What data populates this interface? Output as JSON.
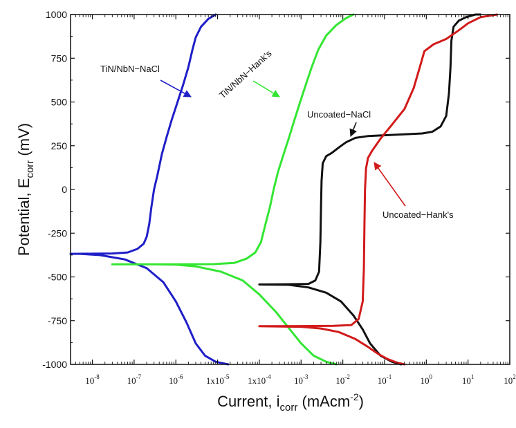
{
  "chart_data": {
    "type": "line",
    "xscale": "log",
    "xlim": [
      3e-09,
      100
    ],
    "ylim": [
      -1000,
      1000
    ],
    "grid": false,
    "legend": "none (labels on chart with arrows)",
    "xlabel": {
      "main": "Current, i",
      "sub": "corr",
      "mid": " (mAcm",
      "sup": "-2",
      "end": ")"
    },
    "ylabel": {
      "main": "Potential, E",
      "sub": "corr",
      "end": " (mV)"
    },
    "y_ticks": [
      {
        "value": 1000,
        "label": "1000"
      },
      {
        "value": 750,
        "label": "750"
      },
      {
        "value": 500,
        "label": "500"
      },
      {
        "value": 250,
        "label": "250"
      },
      {
        "value": 0,
        "label": "0"
      },
      {
        "value": -250,
        "label": "-250"
      },
      {
        "value": -500,
        "label": "-500"
      },
      {
        "value": -750,
        "label": "-750"
      },
      {
        "value": -1000,
        "label": "-1000"
      }
    ],
    "x_ticks": [
      {
        "value": 1e-08,
        "base": "10",
        "exp": "-8"
      },
      {
        "value": 1e-07,
        "base": "10",
        "exp": "-7"
      },
      {
        "value": 1e-06,
        "base": "10",
        "exp": "-6"
      },
      {
        "value": 1e-05,
        "base": "1x10",
        "exp": "-5"
      },
      {
        "value": 0.0001,
        "base": "1x10",
        "exp": "-4"
      },
      {
        "value": 0.001,
        "base": "10",
        "exp": "-3"
      },
      {
        "value": 0.01,
        "base": "10",
        "exp": "-2"
      },
      {
        "value": 0.1,
        "base": "10",
        "exp": "-1"
      },
      {
        "value": 1,
        "base": "10",
        "exp": "0"
      },
      {
        "value": 10,
        "base": "10",
        "exp": "1"
      },
      {
        "value": 100,
        "base": "10",
        "exp": "2"
      }
    ],
    "series": [
      {
        "name": "TiN/NbN−NaCl",
        "color": "#1f1fc8",
        "points": [
          [
            1.8e-05,
            -1000
          ],
          [
            9e-06,
            -985
          ],
          [
            5e-06,
            -950
          ],
          [
            3e-06,
            -880
          ],
          [
            1.8e-06,
            -760
          ],
          [
            1e-06,
            -640
          ],
          [
            5e-07,
            -530
          ],
          [
            2e-07,
            -450
          ],
          [
            6e-08,
            -400
          ],
          [
            1.5e-08,
            -375
          ],
          [
            5e-09,
            -368
          ],
          [
            3e-09,
            -368
          ],
          [
            1e-08,
            -367
          ],
          [
            3e-08,
            -366
          ],
          [
            7e-08,
            -360
          ],
          [
            1.2e-07,
            -340
          ],
          [
            1.7e-07,
            -310
          ],
          [
            2e-07,
            -270
          ],
          [
            2.3e-07,
            -200
          ],
          [
            2.6e-07,
            -100
          ],
          [
            3e-07,
            0
          ],
          [
            3.6e-07,
            80
          ],
          [
            4.6e-07,
            200
          ],
          [
            6e-07,
            300
          ],
          [
            8e-07,
            400
          ],
          [
            1.1e-06,
            500
          ],
          [
            1.5e-06,
            600
          ],
          [
            2e-06,
            700
          ],
          [
            2.5e-06,
            800
          ],
          [
            3e-06,
            870
          ],
          [
            4e-06,
            930
          ],
          [
            6e-06,
            975
          ],
          [
            9e-06,
            1000
          ]
        ]
      },
      {
        "name": "TiN/NbN−Hank's",
        "color": "#33e633",
        "points": [
          [
            0.007,
            -1000
          ],
          [
            0.004,
            -985
          ],
          [
            0.002,
            -950
          ],
          [
            0.001,
            -880
          ],
          [
            0.0005,
            -790
          ],
          [
            0.00025,
            -700
          ],
          [
            0.0001,
            -600
          ],
          [
            4e-05,
            -520
          ],
          [
            1.2e-05,
            -470
          ],
          [
            3e-06,
            -440
          ],
          [
            1e-06,
            -430
          ],
          [
            3e-07,
            -428
          ],
          [
            3e-08,
            -428
          ],
          [
            1e-07,
            -428
          ],
          [
            1e-06,
            -428
          ],
          [
            8e-06,
            -427
          ],
          [
            2.5e-05,
            -420
          ],
          [
            5e-05,
            -395
          ],
          [
            8e-05,
            -360
          ],
          [
            0.00011,
            -300
          ],
          [
            0.00014,
            -200
          ],
          [
            0.00018,
            -100
          ],
          [
            0.00022,
            0
          ],
          [
            0.00028,
            100
          ],
          [
            0.00038,
            200
          ],
          [
            0.00052,
            300
          ],
          [
            0.0007,
            400
          ],
          [
            0.00095,
            500
          ],
          [
            0.0013,
            600
          ],
          [
            0.0018,
            700
          ],
          [
            0.0026,
            800
          ],
          [
            0.004,
            880
          ],
          [
            0.007,
            940
          ],
          [
            0.012,
            980
          ],
          [
            0.018,
            1000
          ]
        ]
      },
      {
        "name": "Uncoated−NaCl",
        "color": "#111111",
        "points": [
          [
            0.25,
            -1000
          ],
          [
            0.15,
            -985
          ],
          [
            0.08,
            -950
          ],
          [
            0.045,
            -880
          ],
          [
            0.03,
            -800
          ],
          [
            0.018,
            -720
          ],
          [
            0.009,
            -640
          ],
          [
            0.004,
            -590
          ],
          [
            0.0015,
            -560
          ],
          [
            0.0005,
            -545
          ],
          [
            0.0001,
            -543
          ],
          [
            0.0004,
            -542
          ],
          [
            0.0015,
            -540
          ],
          [
            0.0022,
            -520
          ],
          [
            0.0027,
            -470
          ],
          [
            0.0029,
            -300
          ],
          [
            0.003,
            -100
          ],
          [
            0.0031,
            50
          ],
          [
            0.0033,
            150
          ],
          [
            0.004,
            190
          ],
          [
            0.0055,
            210
          ],
          [
            0.008,
            240
          ],
          [
            0.012,
            270
          ],
          [
            0.02,
            295
          ],
          [
            0.04,
            305
          ],
          [
            0.1,
            310
          ],
          [
            0.3,
            315
          ],
          [
            0.8,
            320
          ],
          [
            1.4,
            330
          ],
          [
            2.2,
            360
          ],
          [
            3,
            420
          ],
          [
            3.5,
            550
          ],
          [
            3.8,
            700
          ],
          [
            4,
            850
          ],
          [
            4.5,
            930
          ],
          [
            6,
            965
          ],
          [
            9,
            985
          ],
          [
            15.0,
            1000
          ],
          [
            20.0,
            1000
          ]
        ]
      },
      {
        "name": "Uncoated−Hank's",
        "color": "#d21a1a",
        "points": [
          [
            0.3,
            -1000
          ],
          [
            0.2,
            -990
          ],
          [
            0.12,
            -970
          ],
          [
            0.07,
            -940
          ],
          [
            0.04,
            -900
          ],
          [
            0.02,
            -855
          ],
          [
            0.008,
            -815
          ],
          [
            0.003,
            -795
          ],
          [
            0.001,
            -785
          ],
          [
            0.0001,
            -782
          ],
          [
            0.001,
            -781
          ],
          [
            0.006,
            -780
          ],
          [
            0.016,
            -775
          ],
          [
            0.024,
            -740
          ],
          [
            0.03,
            -640
          ],
          [
            0.032,
            -450
          ],
          [
            0.033,
            -200
          ],
          [
            0.034,
            0
          ],
          [
            0.036,
            120
          ],
          [
            0.04,
            180
          ],
          [
            0.05,
            220
          ],
          [
            0.08,
            290
          ],
          [
            0.15,
            370
          ],
          [
            0.3,
            460
          ],
          [
            0.5,
            580
          ],
          [
            0.7,
            700
          ],
          [
            0.9,
            790
          ],
          [
            1.5,
            830
          ],
          [
            3,
            860
          ],
          [
            6,
            910
          ],
          [
            10.0,
            950
          ],
          [
            20.0,
            985
          ],
          [
            50.0,
            1000
          ]
        ]
      }
    ],
    "annotations": [
      {
        "series": 0,
        "text": "TiN/NbN−NaCl"
      },
      {
        "series": 1,
        "text": "TiN/NbN−Hank's"
      },
      {
        "series": 2,
        "text": "Uncoated−NaCl"
      },
      {
        "series": 3,
        "text": "Uncoated−Hank's"
      }
    ]
  }
}
